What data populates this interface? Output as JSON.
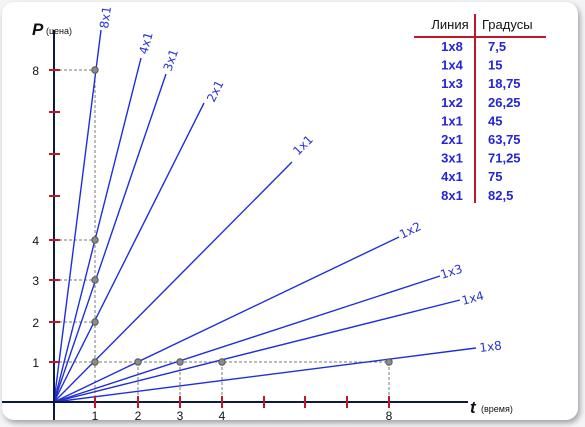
{
  "axes": {
    "y_title": "P",
    "y_sub": "(цена)",
    "x_title": "t",
    "x_sub": "(время)",
    "x_tick_labels": [
      "1",
      "2",
      "3",
      "4",
      "8"
    ],
    "y_tick_labels": [
      "1",
      "2",
      "3",
      "4",
      "8"
    ]
  },
  "fan_lines": [
    {
      "label": "8x1",
      "degrees": "82,5"
    },
    {
      "label": "4x1",
      "degrees": "75"
    },
    {
      "label": "3x1",
      "degrees": "71,25"
    },
    {
      "label": "2x1",
      "degrees": "63,75"
    },
    {
      "label": "1x1",
      "degrees": "45"
    },
    {
      "label": "1x2",
      "degrees": "26,25"
    },
    {
      "label": "1x3",
      "degrees": "18,75"
    },
    {
      "label": "1x4",
      "degrees": "15"
    },
    {
      "label": "1x8",
      "degrees": "7,5"
    }
  ],
  "table": {
    "header_line": "Линия",
    "header_degrees": "Градусы",
    "rows": [
      {
        "line": "1x8",
        "degrees": "7,5"
      },
      {
        "line": "1x4",
        "degrees": "15"
      },
      {
        "line": "1x3",
        "degrees": "18,75"
      },
      {
        "line": "1x2",
        "degrees": "26,25"
      },
      {
        "line": "1x1",
        "degrees": "45"
      },
      {
        "line": "2x1",
        "degrees": "63,75"
      },
      {
        "line": "3x1",
        "degrees": "71,25"
      },
      {
        "line": "4x1",
        "degrees": "75"
      },
      {
        "line": "8x1",
        "degrees": "82,5"
      }
    ]
  },
  "colors": {
    "fan_line": "#1f2fd8",
    "tick": "#c0182a",
    "table_value": "#2424d8"
  }
}
